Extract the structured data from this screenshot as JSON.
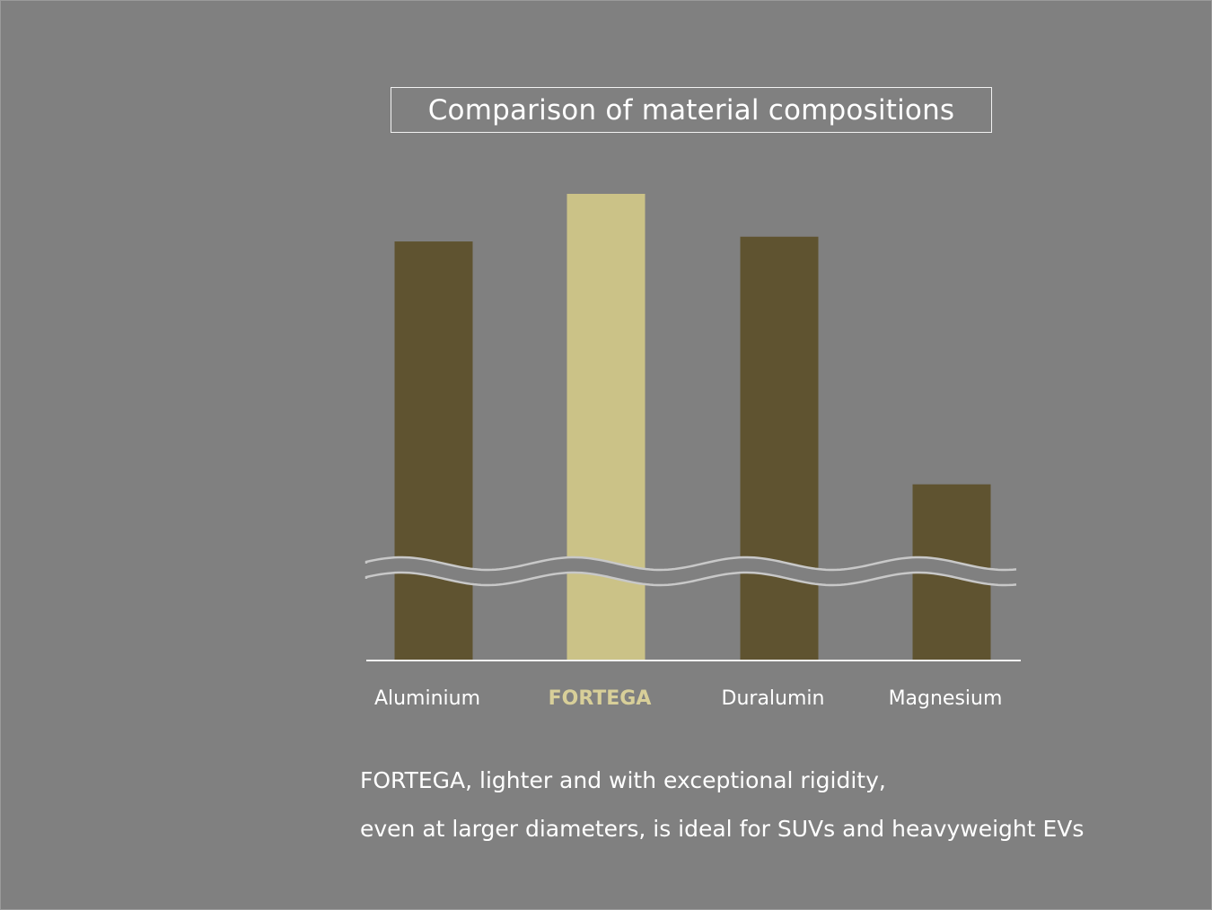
{
  "chart_data": {
    "type": "bar",
    "title": "Comparison of material compositions",
    "categories": [
      "Aluminium",
      "FORTEGA",
      "Duralumin",
      "Magnesium"
    ],
    "values": [
      88,
      98,
      89,
      37
    ],
    "highlight_category": "FORTEGA",
    "axis_break": true,
    "y_axis_labels_shown": false,
    "grid": false,
    "colors": {
      "bar": "#5f5330",
      "highlight_bar": "#cbc287",
      "highlight_label": "#d8cf99",
      "label": "#ffffff",
      "background": "#808080"
    }
  },
  "caption": {
    "line1": "FORTEGA, lighter and with exceptional rigidity,",
    "line2": "even at larger diameters, is ideal for SUVs and heavyweight EVs"
  }
}
